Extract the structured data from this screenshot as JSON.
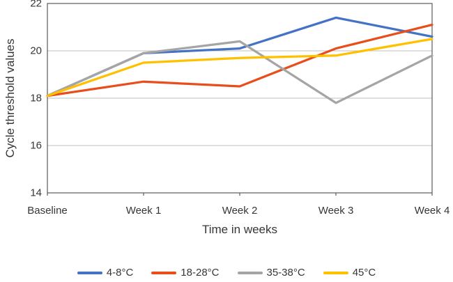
{
  "chart_data": {
    "type": "line",
    "title": "",
    "xlabel": "Time in weeks",
    "ylabel": "Cycle threshold values",
    "categories": [
      "Baseline",
      "Week 1",
      "Week 2",
      "Week 3",
      "Week 4"
    ],
    "series": [
      {
        "name": "4-8°C",
        "color": "#4472C4",
        "values": [
          18.1,
          19.9,
          20.1,
          21.4,
          20.6
        ]
      },
      {
        "name": "18-28°C",
        "color": "#E84E1B",
        "values": [
          18.1,
          18.7,
          18.5,
          20.1,
          21.1
        ]
      },
      {
        "name": "35-38°C",
        "color": "#A5A5A5",
        "values": [
          18.1,
          19.9,
          20.4,
          17.8,
          19.8
        ]
      },
      {
        "name": "45°C",
        "color": "#FFC000",
        "values": [
          18.1,
          19.5,
          19.7,
          19.8,
          20.5
        ]
      }
    ],
    "ylim": [
      14,
      22
    ],
    "yticks": [
      14,
      16,
      18,
      20,
      22
    ],
    "grid": "horizontal",
    "legend_position": "bottom"
  },
  "style": {
    "background": "#ffffff",
    "axis_border_color": "#595959",
    "gridline_color": "#BFBFBF",
    "text_color": "#363636",
    "line_width": 3.25
  }
}
